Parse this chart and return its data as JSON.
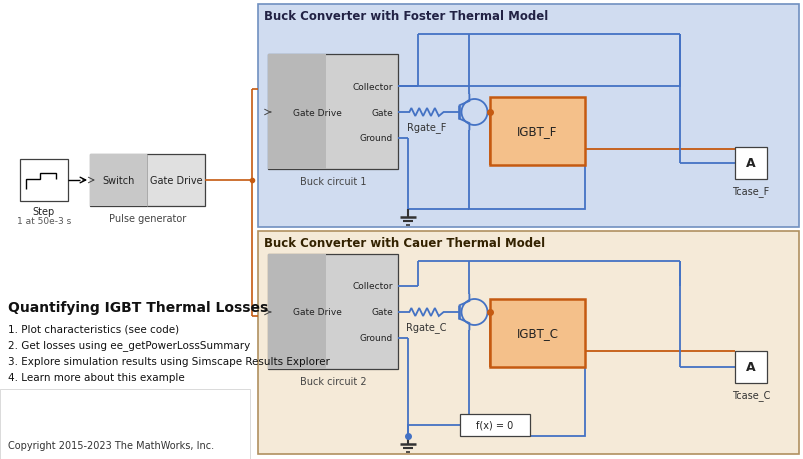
{
  "bg_color": "#ffffff",
  "foster_bg": "#d0dcf0",
  "cauer_bg": "#f5ead8",
  "foster_title": "Buck Converter with Foster Thermal Model",
  "cauer_title": "Buck Converter with Cauer Thermal Model",
  "heading": "Quantifying IGBT Thermal Losses",
  "items": [
    "1. Plot characteristics (see code)",
    "2. Get losses using ee_getPowerLossSummary",
    "3. Explore simulation results using Simscape Results Explorer",
    "4. Learn more about this example"
  ],
  "copyright": "Copyright 2015-2023 The MathWorks, Inc.",
  "blue": "#4472c4",
  "orange": "#c55a11",
  "gray_box": "#c8c8c8",
  "gray_box2": "#d8d8d8",
  "igbt_fill": "#f4c08a",
  "igbt_border": "#c55a11",
  "dark_border": "#404040",
  "panel_border_blue": "#7090c0",
  "panel_border_tan": "#b09060"
}
